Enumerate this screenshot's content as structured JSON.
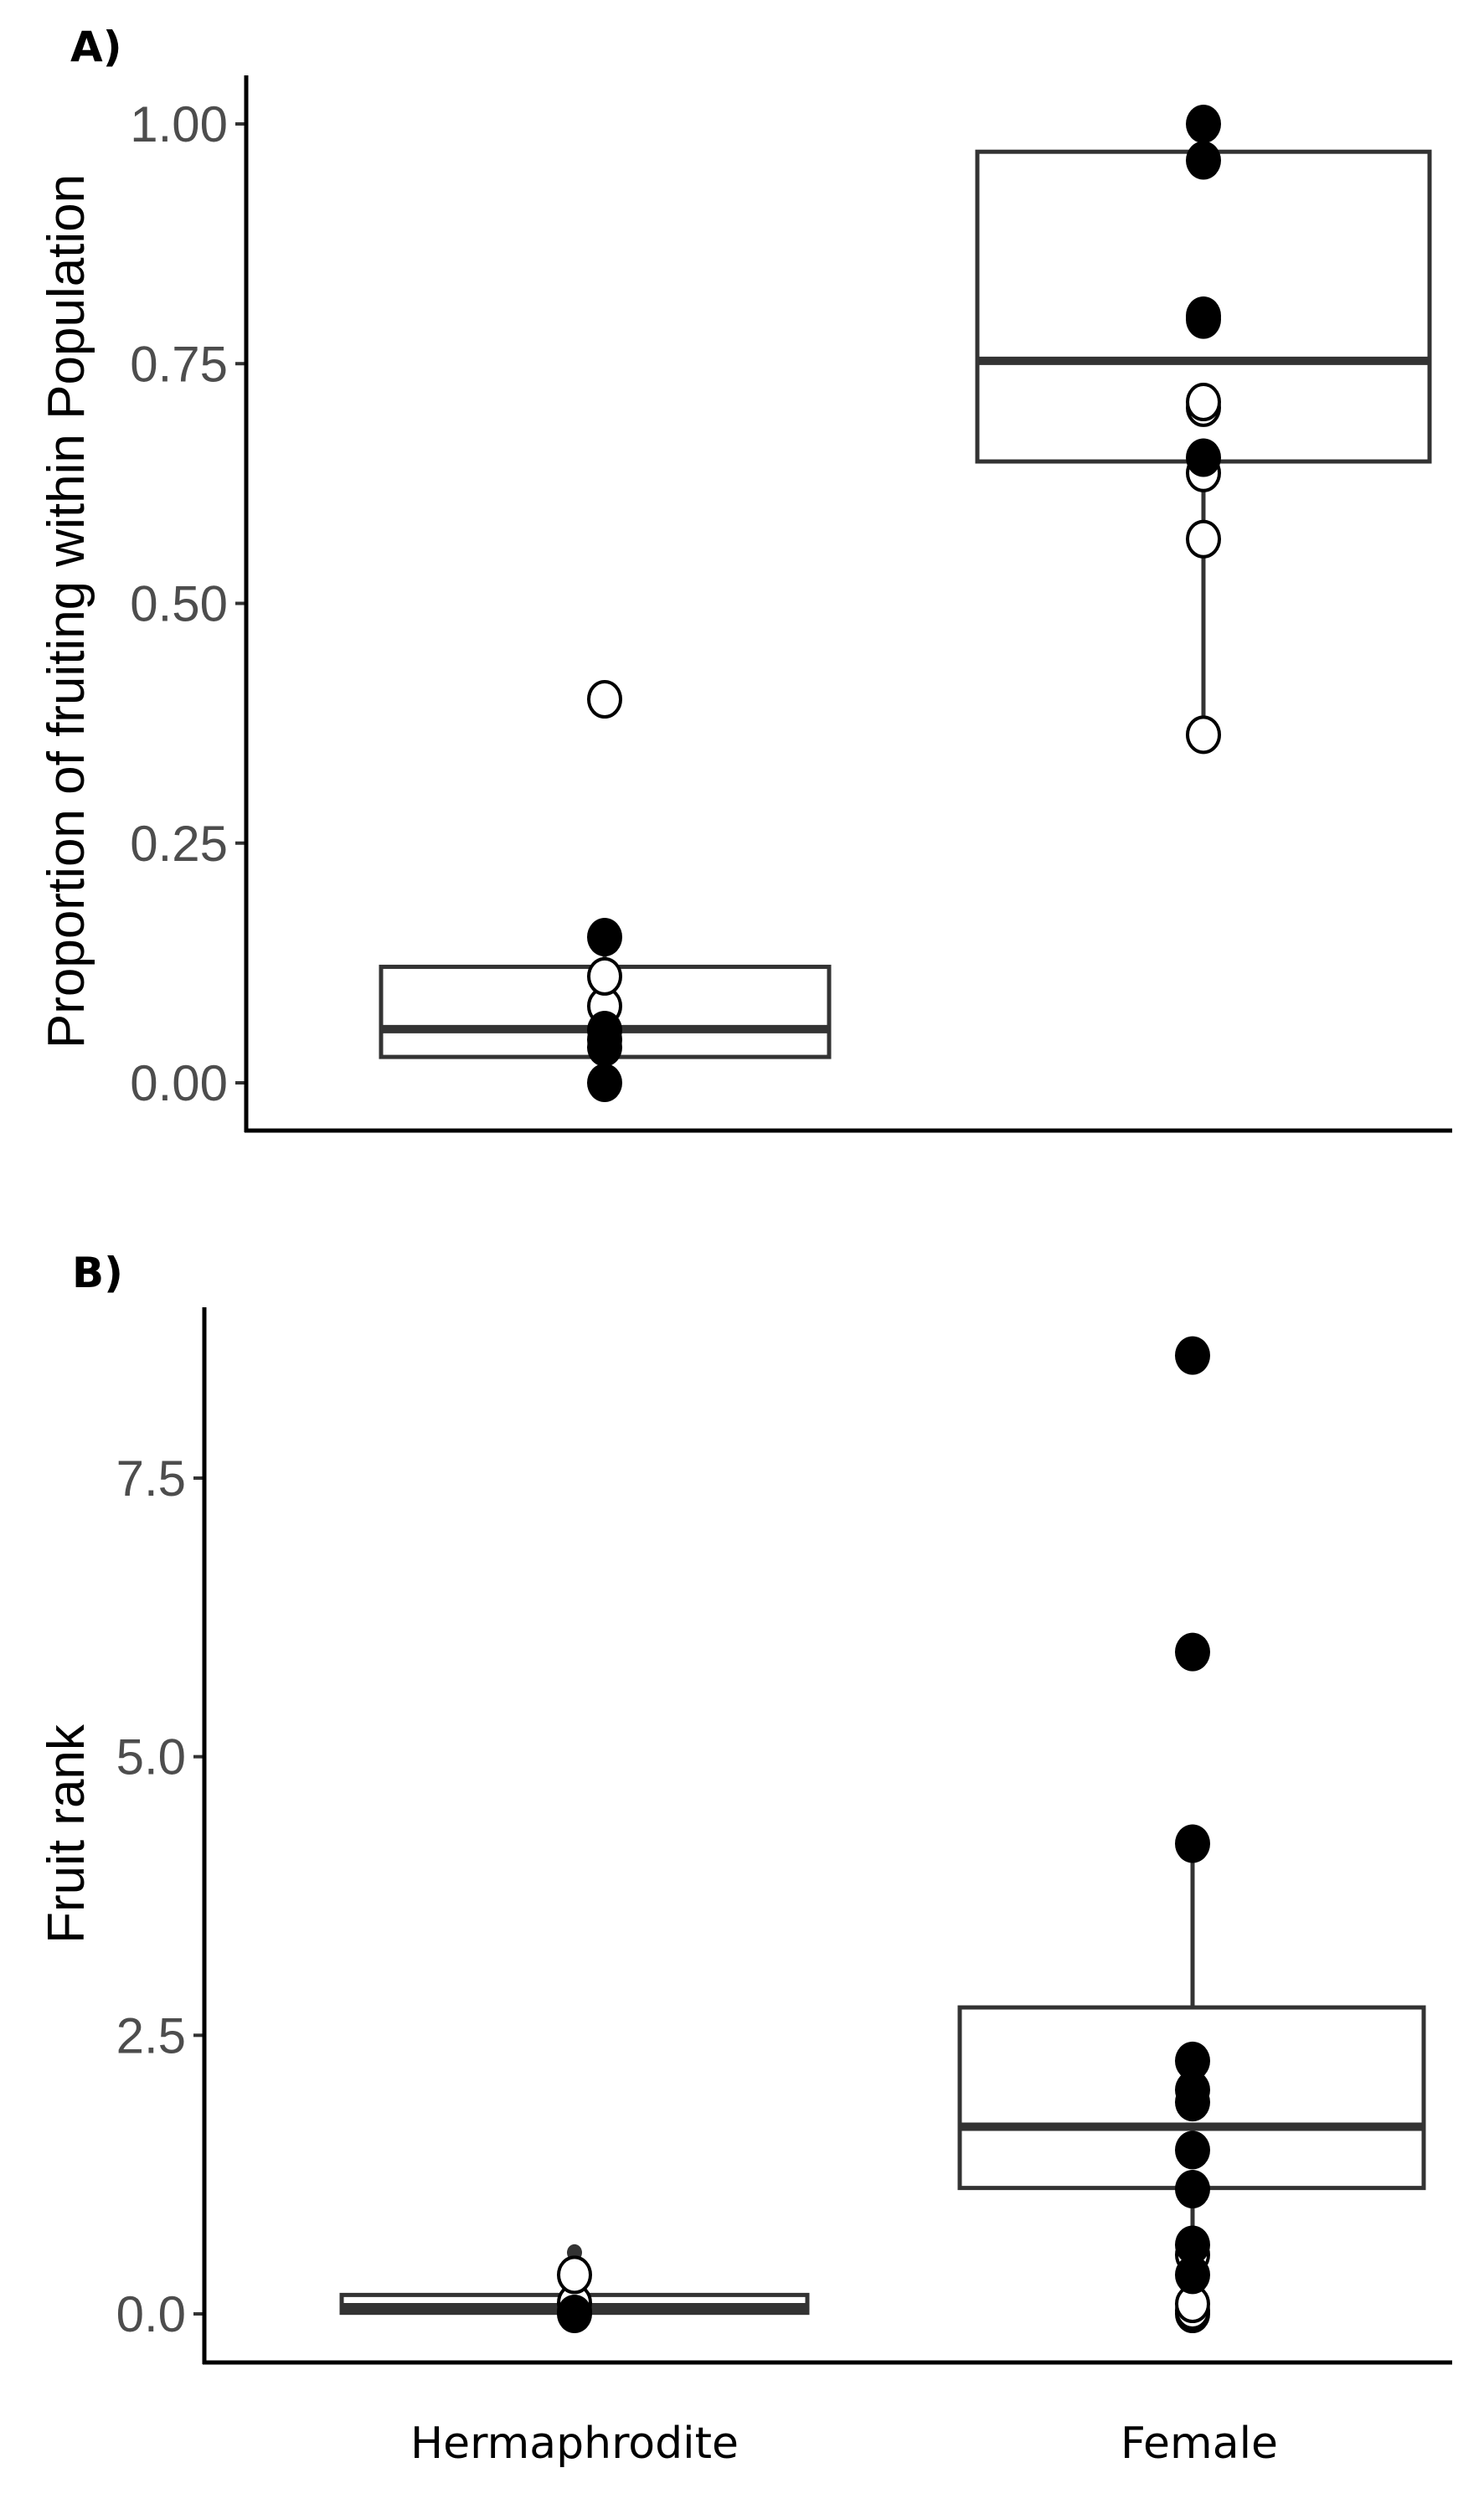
{
  "figure": {
    "panels": [
      {
        "id": "A",
        "label": "A)",
        "ylabel": "Proportion of fruiting within Population",
        "yticks": [
          {
            "value": 0.0,
            "label": "0.00"
          },
          {
            "value": 0.25,
            "label": "0.25"
          },
          {
            "value": 0.5,
            "label": "0.50"
          },
          {
            "value": 0.75,
            "label": "0.75"
          },
          {
            "value": 1.0,
            "label": "1.00"
          }
        ]
      },
      {
        "id": "B",
        "label": "B)",
        "ylabel": "Fruit rank",
        "yticks": [
          {
            "value": 0.0,
            "label": "0.0"
          },
          {
            "value": 2.5,
            "label": "2.5"
          },
          {
            "value": 5.0,
            "label": "5.0"
          },
          {
            "value": 7.5,
            "label": "7.5"
          }
        ]
      }
    ],
    "categories": [
      "Hermaphrodite",
      "Female"
    ],
    "colors": {
      "box_stroke": "#333333",
      "tick_text": "#4d4d4d",
      "filled_point": "#000000",
      "open_point_fill": "#ffffff"
    }
  },
  "chart_data": [
    {
      "type": "box",
      "title": "A)",
      "xlabel": "",
      "ylabel": "Proportion of fruiting within Population",
      "ylim": [
        0,
        1.05
      ],
      "categories": [
        "Hermaphrodite",
        "Female"
      ],
      "grid": false,
      "boxes": [
        {
          "category": "Hermaphrodite",
          "q1": 0.027,
          "median": 0.056,
          "q3": 0.121,
          "whisker_low": 0.0,
          "whisker_high": 0.152
        },
        {
          "category": "Female",
          "q1": 0.648,
          "median": 0.753,
          "q3": 0.971,
          "whisker_low": 0.363,
          "whisker_high": 1.0
        }
      ],
      "points": {
        "Hermaphrodite": {
          "filled": [
            0.0,
            0.037,
            0.045,
            0.055,
            0.152
          ],
          "open": [
            0.08,
            0.111,
            0.4
          ]
        },
        "Female": {
          "filled": [
            0.652,
            0.796,
            0.8,
            0.962,
            1.0
          ],
          "open": [
            0.363,
            0.567,
            0.636,
            0.704,
            0.71
          ]
        }
      }
    },
    {
      "type": "box",
      "title": "B)",
      "xlabel": "",
      "ylabel": "Fruit rank",
      "ylim": [
        -0.4,
        9.0
      ],
      "categories": [
        "Hermaphrodite",
        "Female"
      ],
      "grid": false,
      "boxes": [
        {
          "category": "Hermaphrodite",
          "q1": 0.01,
          "median": 0.06,
          "q3": 0.17,
          "whisker_low": 0.0,
          "whisker_high": 0.35,
          "outliers": [
            0.55
          ]
        },
        {
          "category": "Female",
          "q1": 1.13,
          "median": 1.68,
          "q3": 2.75,
          "whisker_low": 0.0,
          "whisker_high": 4.22
        }
      ],
      "points": {
        "Hermaphrodite": {
          "filled": [
            0.0
          ],
          "open": [
            0.02,
            0.1,
            0.35
          ]
        },
        "Female": {
          "filled": [
            0.35,
            0.62,
            1.12,
            1.47,
            1.9,
            2.01,
            2.27,
            4.22,
            5.94,
            8.6
          ],
          "open": [
            0.0,
            0.03,
            0.09,
            0.53
          ]
        }
      }
    }
  ]
}
